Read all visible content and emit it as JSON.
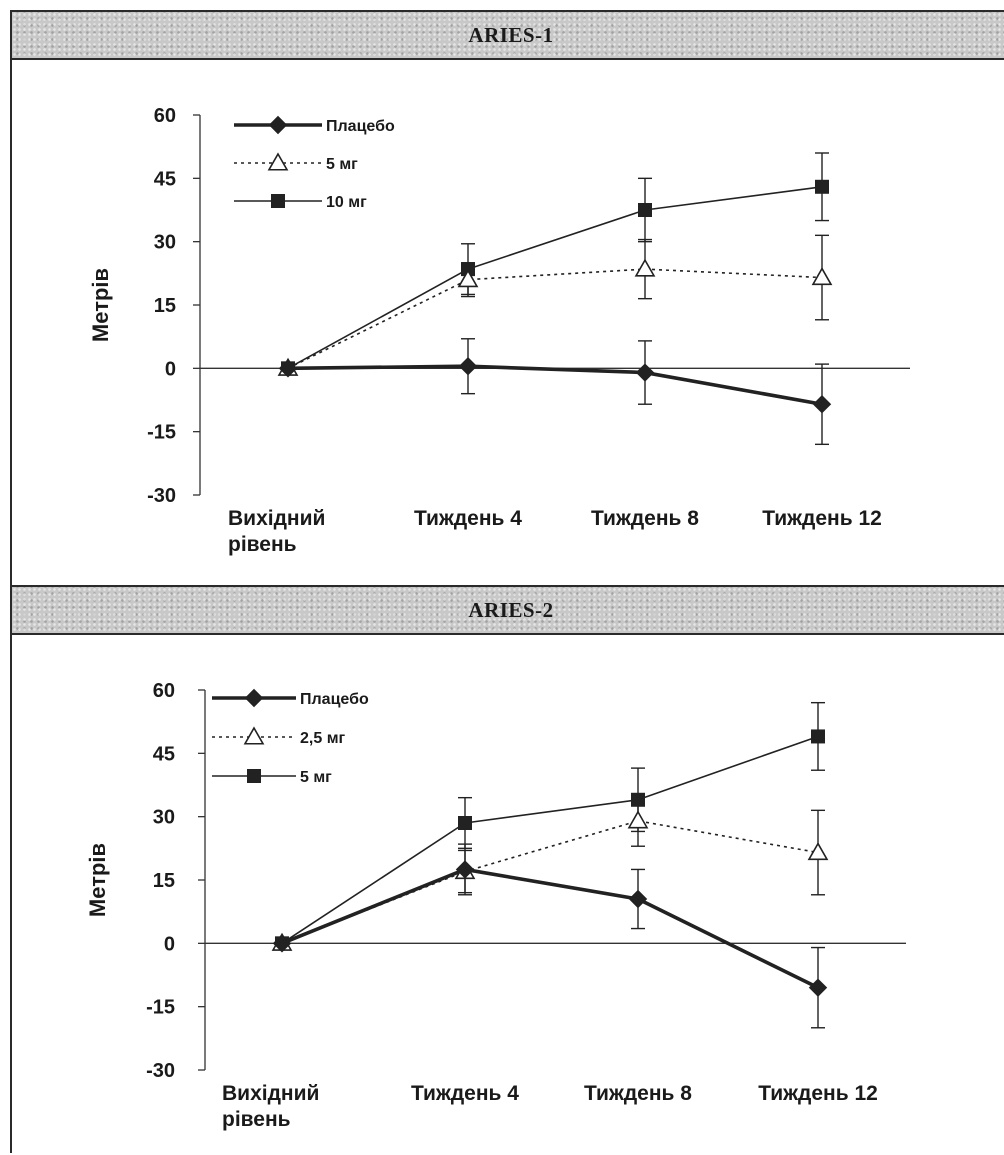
{
  "chart_data": [
    {
      "type": "line",
      "title": "ARIES-1",
      "xlabel": "",
      "ylabel": "Метрів",
      "ylim": [
        -30,
        60
      ],
      "yticks": [
        60,
        45,
        30,
        15,
        0,
        -15,
        -30
      ],
      "categories": [
        [
          "Вихідний",
          "рівень"
        ],
        [
          "Тиждень 4"
        ],
        [
          "Тиждень 8"
        ],
        [
          "Тиждень 12"
        ]
      ],
      "legend_position": "top-left",
      "series": [
        {
          "name": "Плацебо",
          "style": "thick",
          "marker": "diamond",
          "values": [
            0,
            0.5,
            -1,
            -8.5
          ],
          "errors": [
            0,
            6.5,
            7.5,
            9.5
          ]
        },
        {
          "name": "5 мг",
          "style": "dotted",
          "marker": "triangle-open",
          "values": [
            0,
            21,
            23.5,
            21.5
          ],
          "errors": [
            0,
            4,
            7,
            10
          ]
        },
        {
          "name": "10 мг",
          "style": "thin",
          "marker": "square",
          "values": [
            0,
            23.5,
            37.5,
            43
          ],
          "errors": [
            0,
            6,
            7.5,
            8
          ]
        }
      ]
    },
    {
      "type": "line",
      "title": "ARIES-2",
      "xlabel": "",
      "ylabel": "Метрів",
      "ylim": [
        -30,
        60
      ],
      "yticks": [
        60,
        45,
        30,
        15,
        0,
        -15,
        -30
      ],
      "categories": [
        [
          "Вихідний",
          "рівень"
        ],
        [
          "Тиждень 4"
        ],
        [
          "Тиждень 8"
        ],
        [
          "Тиждень 12"
        ]
      ],
      "legend_position": "top-left",
      "series": [
        {
          "name": "Плацебо",
          "style": "thick",
          "marker": "diamond",
          "values": [
            0,
            17.5,
            10.5,
            -10.5
          ],
          "errors": [
            0,
            6,
            7,
            9.5
          ]
        },
        {
          "name": "2,5 мг",
          "style": "dotted",
          "marker": "triangle-open",
          "values": [
            0,
            17,
            29,
            21.5
          ],
          "errors": [
            0,
            5,
            6,
            10
          ]
        },
        {
          "name": "5 мг",
          "style": "thin",
          "marker": "square",
          "values": [
            0,
            28.5,
            34,
            49
          ],
          "errors": [
            0,
            6,
            7.5,
            8
          ]
        }
      ]
    }
  ]
}
